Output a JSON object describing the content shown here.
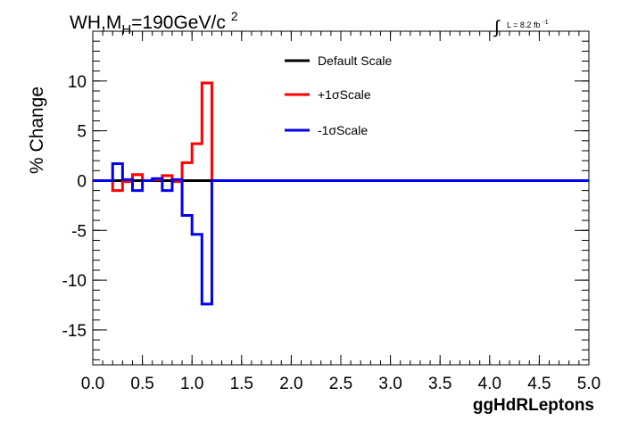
{
  "chart_data": {
    "type": "line",
    "title_main": "WH,M",
    "title_sub": "H",
    "title_rest": "=190GeV/c",
    "title_sup": "2",
    "lumi_prefix": "∫",
    "lumi_label": "L = 8.2 fb",
    "lumi_sup": "-1",
    "xlabel": "ggHdRLeptons",
    "ylabel": "% Change",
    "xlim": [
      0.0,
      5.0
    ],
    "ylim": [
      -18.5,
      15.0
    ],
    "xticks": [
      "0.0",
      "0.5",
      "1.0",
      "1.5",
      "2.0",
      "2.5",
      "3.0",
      "3.5",
      "4.0",
      "4.5",
      "5.0"
    ],
    "yticks": [
      "-15",
      "-10",
      "-5",
      "0",
      "5",
      "10"
    ],
    "bin_edges": [
      0.0,
      0.1,
      0.2,
      0.3,
      0.4,
      0.5,
      0.6,
      0.7,
      0.8,
      0.9,
      1.0,
      1.1,
      1.2,
      1.3,
      1.4,
      1.5,
      1.6,
      1.7,
      1.8,
      1.9,
      2.0,
      2.1,
      2.2,
      2.3,
      2.4,
      2.5,
      2.6,
      2.7,
      2.8,
      2.9,
      3.0,
      3.1,
      3.2,
      3.3,
      3.4,
      3.5,
      3.6,
      3.7,
      3.8,
      3.9,
      4.0,
      4.1,
      4.2,
      4.3,
      4.4,
      4.5,
      4.6,
      4.7,
      4.8,
      4.9,
      5.0
    ],
    "series": [
      {
        "name": "Default Scale",
        "color": "#000000",
        "values": [
          0,
          0,
          0,
          0,
          0,
          0,
          0,
          0,
          0,
          0,
          0,
          0,
          0,
          0,
          0,
          0,
          0,
          0,
          0,
          0,
          0,
          0,
          0,
          0,
          0,
          0,
          0,
          0,
          0,
          0,
          0,
          0,
          0,
          0,
          0,
          0,
          0,
          0,
          0,
          0,
          0,
          0,
          0,
          0,
          0,
          0,
          0,
          0,
          0,
          0
        ]
      },
      {
        "name": "+1σScale",
        "color": "#ff0000",
        "values": [
          0,
          0,
          -1.0,
          -0.1,
          0.6,
          0.0,
          0.1,
          0.5,
          -0.1,
          1.8,
          3.7,
          9.8,
          0,
          0,
          0,
          0,
          0,
          0,
          0,
          0,
          0,
          0,
          0,
          0,
          0,
          0,
          0,
          0,
          0,
          0,
          0,
          0,
          0,
          0,
          0,
          0,
          0,
          0,
          0,
          0,
          0,
          0,
          0,
          0,
          0,
          0,
          0,
          0,
          0,
          0
        ]
      },
      {
        "name": "-1σScale",
        "color": "#0000ee",
        "values": [
          0,
          0,
          1.7,
          0.1,
          -1.0,
          0.0,
          0.2,
          -1.0,
          0.1,
          -3.5,
          -5.4,
          -12.4,
          0,
          0,
          0,
          0,
          0,
          0,
          0,
          0,
          0,
          0,
          0,
          0,
          0,
          0,
          0,
          0,
          0,
          0,
          0,
          0,
          0,
          0,
          0,
          0,
          0,
          0,
          0,
          0,
          0,
          0,
          0,
          0,
          0,
          0,
          0,
          0,
          0,
          0
        ]
      }
    ],
    "legend_position": "top-center",
    "grid": false
  }
}
